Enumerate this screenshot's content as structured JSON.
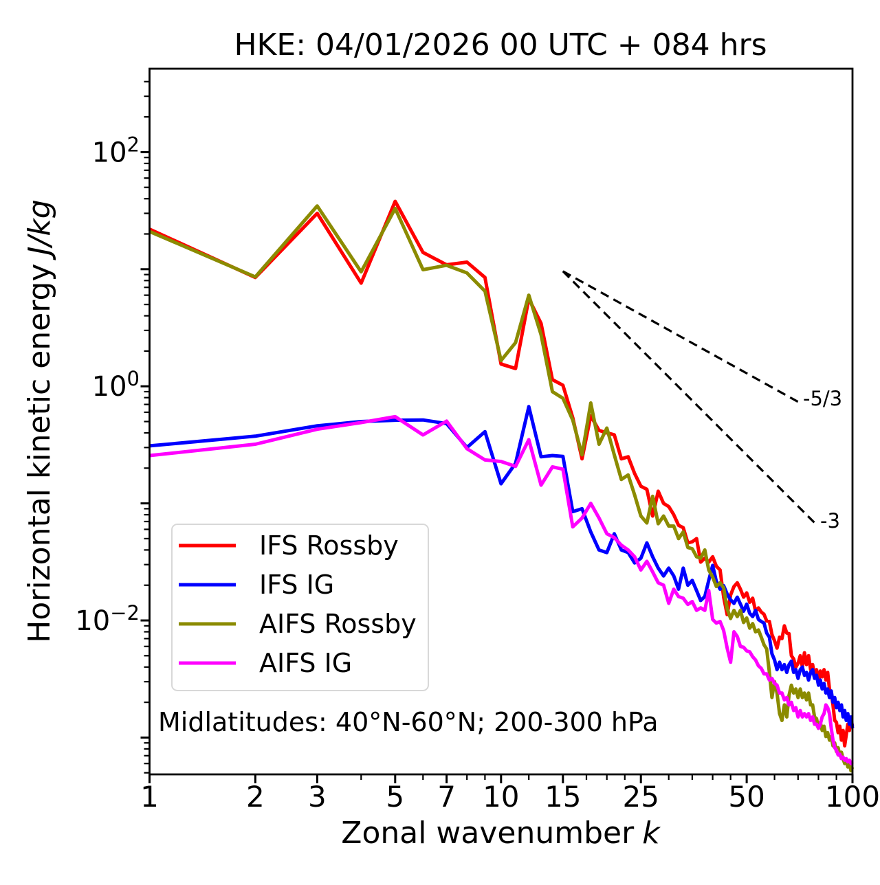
{
  "title": "HKE: 04/01/2026 00 UTC + 084 hrs",
  "xlabel": {
    "text": "Zonal wavenumber",
    "italic": "k"
  },
  "ylabel": {
    "text": "Horizontal kinetic energy",
    "italic": "J/kg"
  },
  "annotation": "Midlatitudes: 40°N-60°N; 200-300 hPa",
  "chart_data": {
    "type": "line",
    "x_scale": "log",
    "y_scale": "log",
    "xlim": [
      1,
      100
    ],
    "ylim": [
      0.00049,
      489
    ],
    "xlabel": "Zonal wavenumber k",
    "ylabel": "Horizontal kinetic energy J/kg",
    "x_major_ticks": [
      1,
      2,
      3,
      5,
      7,
      10,
      15,
      25,
      50,
      100
    ],
    "x_major_labels": [
      "1",
      "2",
      "3",
      "5",
      "7",
      "10",
      "15",
      "25",
      "50",
      "100"
    ],
    "x_minor_ticks": [
      4,
      6,
      8,
      9,
      12,
      17.5,
      20,
      22.5,
      30,
      35,
      40,
      45,
      60,
      70,
      80,
      90
    ],
    "y_labeled_ticks": [
      {
        "value": 100,
        "mantissa": "10",
        "exp": "2"
      },
      {
        "value": 1,
        "mantissa": "10",
        "exp": "0"
      },
      {
        "value": 0.01,
        "mantissa": "10",
        "exp": "−2"
      }
    ],
    "y_unlabeled_ticks": [
      10,
      0.1,
      0.001
    ],
    "legend_position": "lower left",
    "series": [
      {
        "label": "IFS Rossby",
        "color": "#ff0000",
        "x_start": 1,
        "x_step": 1,
        "values": [
          22,
          8.5,
          30,
          7.6,
          38,
          13.9,
          10.9,
          11.5,
          8.5,
          1.55,
          1.42,
          5.6,
          3.45,
          1.14,
          1.02,
          0.54,
          0.24,
          0.56,
          0.42,
          0.4,
          0.385,
          0.24,
          0.25,
          0.18,
          0.14,
          0.132,
          0.078,
          0.127,
          0.1,
          0.094,
          0.08,
          0.065,
          0.062,
          0.046,
          0.047,
          0.05,
          0.0315,
          0.034,
          0.0315,
          0.035,
          0.029,
          0.027,
          0.0158,
          0.0112,
          0.0165,
          0.0195,
          0.021,
          0.0185,
          0.0158,
          0.0172,
          0.0143,
          0.0155,
          0.012,
          0.0128,
          0.0118,
          0.0113,
          0.0099,
          0.0098,
          0.0076,
          0.0067,
          0.0058,
          0.0072,
          0.007,
          0.009,
          0.0078,
          0.0077,
          0.005,
          0.0047,
          0.004,
          0.0043,
          0.005,
          0.004,
          0.0053,
          0.0042,
          0.005,
          0.0038,
          0.0042,
          0.0033,
          0.0038,
          0.003,
          0.0037,
          0.0033,
          0.0038,
          0.0031,
          0.0036,
          0.0026,
          0.0024,
          0.0019,
          0.0014,
          0.00135,
          0.0011,
          0.00125,
          0.00095,
          0.00115,
          0.00085,
          0.00105,
          0.0013,
          0.00115,
          0.0014,
          0.00126
        ]
      },
      {
        "label": "IFS IG",
        "color": "#0000ff",
        "x_start": 1,
        "x_step": 1,
        "values": [
          0.31,
          0.375,
          0.46,
          0.5,
          0.513,
          0.516,
          0.48,
          0.3,
          0.41,
          0.147,
          0.22,
          0.67,
          0.25,
          0.256,
          0.252,
          0.085,
          0.09,
          0.057,
          0.04,
          0.038,
          0.055,
          0.04,
          0.038,
          0.031,
          0.034,
          0.046,
          0.035,
          0.028,
          0.024,
          0.028,
          0.024,
          0.0185,
          0.028,
          0.02,
          0.022,
          0.018,
          0.0148,
          0.016,
          0.022,
          0.0295,
          0.0215,
          0.0185,
          0.0198,
          0.0168,
          0.015,
          0.014,
          0.0158,
          0.0138,
          0.012,
          0.0138,
          0.0115,
          0.0108,
          0.0122,
          0.0102,
          0.0098,
          0.0095,
          0.0078,
          0.0072,
          0.0052,
          0.0046,
          0.0038,
          0.0044,
          0.0038,
          0.0042,
          0.0036,
          0.0042,
          0.0045,
          0.0036,
          0.0038,
          0.0032,
          0.0038,
          0.004,
          0.0034,
          0.0036,
          0.0031,
          0.0036,
          0.0038,
          0.0032,
          0.0034,
          0.0028,
          0.0031,
          0.0026,
          0.0029,
          0.0024,
          0.0026,
          0.0022,
          0.0025,
          0.002,
          0.0022,
          0.0018,
          0.002,
          0.0017,
          0.0019,
          0.0015,
          0.0017,
          0.0014,
          0.0016,
          0.0013,
          0.0015,
          0.0012
        ]
      },
      {
        "label": "AIFS Rossby",
        "color": "#8b8b00",
        "x_start": 1,
        "x_step": 1,
        "values": [
          21,
          8.6,
          34.7,
          9.5,
          33,
          9.9,
          10.8,
          9.3,
          6.5,
          1.66,
          2.36,
          6.0,
          2.76,
          0.9,
          0.79,
          0.515,
          0.26,
          0.72,
          0.32,
          0.44,
          0.26,
          0.16,
          0.175,
          0.118,
          0.078,
          0.068,
          0.115,
          0.067,
          0.078,
          0.064,
          0.064,
          0.05,
          0.057,
          0.042,
          0.041,
          0.035,
          0.034,
          0.04,
          0.027,
          0.0235,
          0.0195,
          0.021,
          0.019,
          0.0126,
          0.0104,
          0.0122,
          0.0108,
          0.0122,
          0.0096,
          0.0105,
          0.0086,
          0.0094,
          0.008,
          0.0083,
          0.0072,
          0.0062,
          0.0057,
          0.0036,
          0.0022,
          0.003,
          0.0024,
          0.0016,
          0.0014,
          0.0019,
          0.0015,
          0.0023,
          0.0028,
          0.0024,
          0.0026,
          0.0022,
          0.0026,
          0.0022,
          0.0024,
          0.0021,
          0.0024,
          0.0019,
          0.0019,
          0.0015,
          0.00145,
          0.0012,
          0.00135,
          0.00115,
          0.00125,
          0.00102,
          0.0011,
          0.00095,
          0.00102,
          0.00085,
          0.0009,
          0.00076,
          0.00082,
          0.0007,
          0.00075,
          0.00066,
          0.0006,
          0.00065,
          0.00056,
          0.0006,
          0.00052,
          0.00056
        ]
      },
      {
        "label": "AIFS IG",
        "color": "#ff00ff",
        "x_start": 1,
        "x_step": 1,
        "values": [
          0.256,
          0.32,
          0.43,
          0.49,
          0.55,
          0.384,
          0.504,
          0.293,
          0.235,
          0.228,
          0.207,
          0.35,
          0.143,
          0.205,
          0.196,
          0.063,
          0.075,
          0.1,
          0.075,
          0.055,
          0.051,
          0.044,
          0.04,
          0.035,
          0.027,
          0.032,
          0.026,
          0.021,
          0.02,
          0.014,
          0.0185,
          0.016,
          0.0155,
          0.0137,
          0.0145,
          0.0122,
          0.0128,
          0.0122,
          0.018,
          0.0102,
          0.0095,
          0.0098,
          0.0082,
          0.0058,
          0.0044,
          0.008,
          0.0073,
          0.006,
          0.0059,
          0.0055,
          0.0054,
          0.0049,
          0.0046,
          0.0041,
          0.0039,
          0.0035,
          0.0035,
          0.0031,
          0.0032,
          0.0029,
          0.0028,
          0.0024,
          0.0024,
          0.0021,
          0.0022,
          0.0019,
          0.002,
          0.0017,
          0.0018,
          0.0015,
          0.0017,
          0.0015,
          0.0016,
          0.0015,
          0.0016,
          0.0014,
          0.0015,
          0.0013,
          0.0013,
          0.0012,
          0.0013,
          0.0015,
          0.0016,
          0.0019,
          0.0018,
          0.0016,
          0.0012,
          0.00095,
          0.00082,
          0.00078,
          0.00071,
          0.00072,
          0.00066,
          0.00068,
          0.00064,
          0.00066,
          0.00062,
          0.00064,
          0.0006,
          0.00062
        ]
      }
    ],
    "reference_lines": [
      {
        "label": "-5/3",
        "slope": "-5/3",
        "x": [
          15,
          70
        ],
        "values": [
          9.6,
          0.737
        ]
      },
      {
        "label": "-3",
        "slope": "-3",
        "x": [
          15,
          79
        ],
        "values": [
          9.6,
          0.0657
        ]
      }
    ]
  }
}
